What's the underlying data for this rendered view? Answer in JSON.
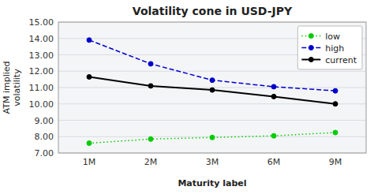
{
  "chart_data": {
    "type": "line",
    "title": "Volatility cone in USD-JPY",
    "x_label": "Maturity label",
    "y_label": "ATM implied\nvolatility",
    "categories": [
      "1M",
      "2M",
      "3M",
      "6M",
      "9M"
    ],
    "series": [
      {
        "name": "low",
        "color": "#00cc00",
        "line_style": "dotted",
        "marker": "circle",
        "values": [
          7.6,
          7.85,
          7.95,
          8.05,
          8.25
        ]
      },
      {
        "name": "high",
        "color": "#0000cc",
        "line_style": "dashed",
        "marker": "circle",
        "values": [
          13.9,
          12.45,
          11.45,
          11.05,
          10.8
        ]
      },
      {
        "name": "current",
        "color": "#000000",
        "line_style": "solid",
        "marker": "circle",
        "values": [
          11.65,
          11.1,
          10.85,
          10.45,
          10.0
        ]
      }
    ],
    "ylim": [
      7.0,
      15.0
    ],
    "yticks": [
      {
        "value": 7.0,
        "label": "7.00"
      },
      {
        "value": 8.0,
        "label": "8.00"
      },
      {
        "value": 9.0,
        "label": "9.00"
      },
      {
        "value": 10.0,
        "label": "10.00"
      },
      {
        "value": 11.0,
        "label": "11.00"
      },
      {
        "value": 12.0,
        "label": "12.00"
      },
      {
        "value": 13.0,
        "label": "13.00"
      },
      {
        "value": 14.0,
        "label": "14.00"
      },
      {
        "value": 15.0,
        "label": "15.00"
      }
    ],
    "grid": true,
    "legend": "upper right"
  }
}
